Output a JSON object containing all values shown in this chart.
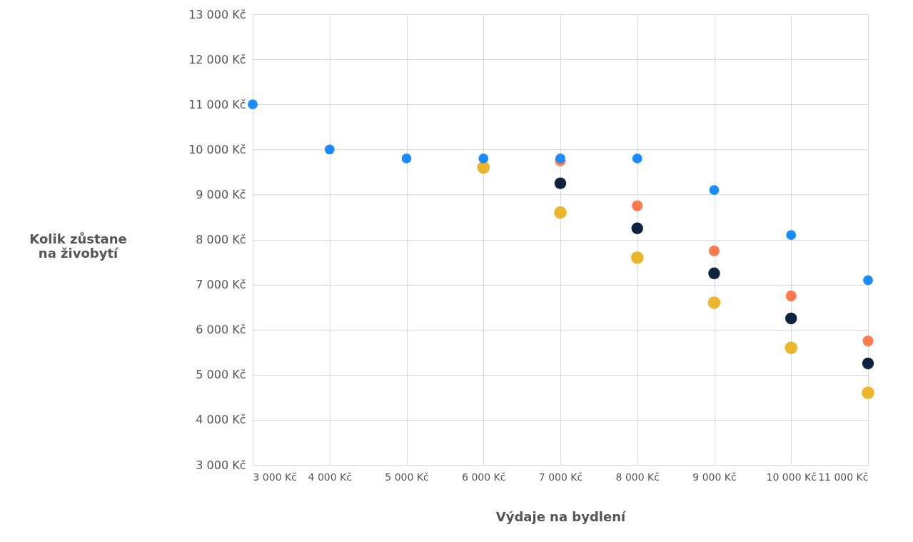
{
  "chart_data": {
    "type": "scatter",
    "xlabel": "Výdaje na bydlení",
    "ylabel": "Kolik zůstane\nna živobytí",
    "x": [
      3000,
      4000,
      5000,
      6000,
      7000,
      8000,
      9000,
      10000,
      11000
    ],
    "series": [
      {
        "color": "#ebb52e",
        "values": [
          null,
          null,
          null,
          9600,
          8600,
          7600,
          6600,
          5600,
          4600
        ]
      },
      {
        "color": "#0d2340",
        "values": [
          null,
          null,
          null,
          null,
          9250,
          8250,
          7250,
          6250,
          5250
        ]
      },
      {
        "color": "#ff7a4d",
        "values": [
          null,
          null,
          null,
          null,
          9750,
          8750,
          7750,
          6750,
          5750
        ]
      },
      {
        "color": "#1a8cff",
        "values": [
          11000,
          10000,
          9800,
          9800,
          9800,
          9800,
          9100,
          8100,
          7100
        ]
      }
    ],
    "xlim": [
      3000,
      11000
    ],
    "xticks": [
      {
        "value": 3000,
        "label": "3 000 Kč"
      },
      {
        "value": 4000,
        "label": "4 000 Kč"
      },
      {
        "value": 5000,
        "label": "5 000 Kč"
      },
      {
        "value": 6000,
        "label": "6 000 Kč"
      },
      {
        "value": 7000,
        "label": "7 000 Kč"
      },
      {
        "value": 8000,
        "label": "8 000 Kč"
      },
      {
        "value": 9000,
        "label": "9 000 Kč"
      },
      {
        "value": 10000,
        "label": "10 000 Kč"
      },
      {
        "value": 11000,
        "label": "11 000 Kč"
      }
    ],
    "ylim": [
      3000,
      13000
    ],
    "yticks": [
      {
        "value": 3000,
        "label": "3 000 Kč"
      },
      {
        "value": 4000,
        "label": "4 000 Kč"
      },
      {
        "value": 5000,
        "label": "5 000 Kč"
      },
      {
        "value": 6000,
        "label": "6 000 Kč"
      },
      {
        "value": 7000,
        "label": "7 000 Kč"
      },
      {
        "value": 8000,
        "label": "8 000 Kč"
      },
      {
        "value": 9000,
        "label": "9 000 Kč"
      },
      {
        "value": 10000,
        "label": "10 000 Kč"
      },
      {
        "value": 11000,
        "label": "11 000 Kč"
      },
      {
        "value": 12000,
        "label": "12 000 Kč"
      },
      {
        "value": 13000,
        "label": "13 000 Kč"
      }
    ],
    "grid": true,
    "marker": "circle"
  }
}
